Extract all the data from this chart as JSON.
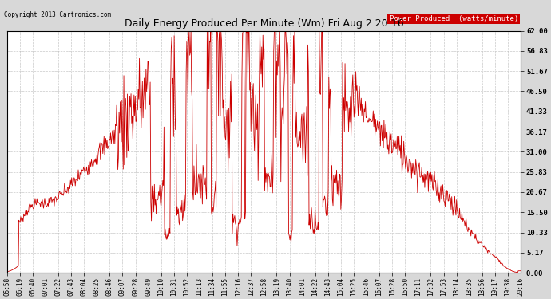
{
  "title": "Daily Energy Produced Per Minute (Wm) Fri Aug 2 20:16",
  "copyright": "Copyright 2013 Cartronics.com",
  "legend_label": "Power Produced  (watts/minute)",
  "legend_bg": "#cc0000",
  "legend_fg": "#ffffff",
  "line_color": "#cc0000",
  "bg_color": "#d8d8d8",
  "plot_bg": "#ffffff",
  "grid_color": "#bbbbbb",
  "yticks": [
    0.0,
    5.17,
    10.33,
    15.5,
    20.67,
    25.83,
    31.0,
    36.17,
    41.33,
    46.5,
    51.67,
    56.83,
    62.0
  ],
  "ymax": 62.0,
  "ymin": 0.0,
  "xtick_labels": [
    "05:58",
    "06:19",
    "06:40",
    "07:01",
    "07:22",
    "07:43",
    "08:04",
    "08:25",
    "08:46",
    "09:07",
    "09:28",
    "09:49",
    "10:10",
    "10:31",
    "10:52",
    "11:13",
    "11:34",
    "11:55",
    "12:16",
    "12:37",
    "12:58",
    "13:19",
    "13:40",
    "14:01",
    "14:22",
    "14:43",
    "15:04",
    "15:25",
    "15:46",
    "16:07",
    "16:28",
    "16:50",
    "17:11",
    "17:32",
    "17:53",
    "18:14",
    "18:35",
    "18:56",
    "19:17",
    "19:38",
    "20:16"
  ]
}
